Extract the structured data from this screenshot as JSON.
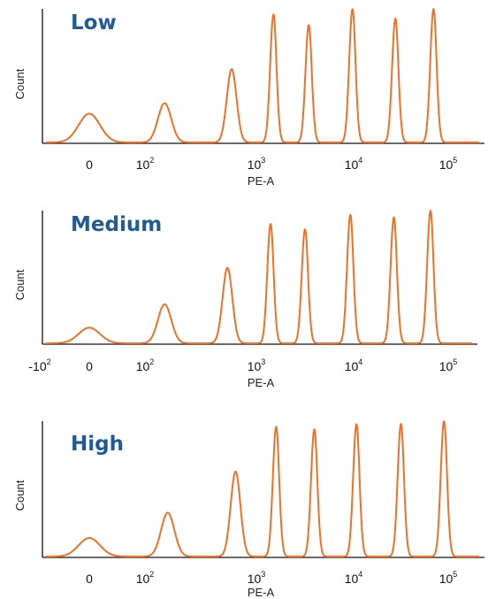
{
  "chart_data": [
    {
      "type": "line",
      "title": "Low",
      "xlabel": "PE-A",
      "ylabel": "Count",
      "x_ticks": [
        {
          "base": "",
          "exp": "",
          "text": "0"
        },
        {
          "base": "10",
          "exp": "2",
          "text": ""
        },
        {
          "base": "10",
          "exp": "3",
          "text": ""
        },
        {
          "base": "10",
          "exp": "4",
          "text": ""
        },
        {
          "base": "10",
          "exp": "5",
          "text": ""
        }
      ],
      "series": [
        {
          "values_note": "",
          "peaks": [
            {
              "x": 0,
              "height": 0.22
            },
            {
              "x": 150,
              "height": 0.3
            },
            {
              "x": 600,
              "height": 0.56
            },
            {
              "x": 1500,
              "height": 0.96
            },
            {
              "x": 3500,
              "height": 0.88
            },
            {
              "x": 10000,
              "height": 1.0
            },
            {
              "x": 28000,
              "height": 0.93
            },
            {
              "x": 70000,
              "height": 1.0
            }
          ]
        }
      ]
    },
    {
      "type": "line",
      "title": "Medium",
      "xlabel": "PE-A",
      "ylabel": "Count",
      "x_ticks": [
        {
          "base": "-10",
          "exp": "2",
          "text": ""
        },
        {
          "base": "",
          "exp": "",
          "text": "0"
        },
        {
          "base": "10",
          "exp": "2",
          "text": ""
        },
        {
          "base": "10",
          "exp": "3",
          "text": ""
        },
        {
          "base": "10",
          "exp": "4",
          "text": ""
        },
        {
          "base": "10",
          "exp": "5",
          "text": ""
        }
      ],
      "series": [
        {
          "values_note": "",
          "peaks": [
            {
              "x": 0,
              "height": 0.12
            },
            {
              "x": 150,
              "height": 0.3
            },
            {
              "x": 550,
              "height": 0.58
            },
            {
              "x": 1400,
              "height": 0.9
            },
            {
              "x": 3200,
              "height": 0.86
            },
            {
              "x": 9500,
              "height": 0.97
            },
            {
              "x": 27000,
              "height": 0.95
            },
            {
              "x": 65000,
              "height": 1.0
            }
          ]
        }
      ]
    },
    {
      "type": "line",
      "title": "High",
      "xlabel": "PE-A",
      "ylabel": "Count",
      "x_ticks": [
        {
          "base": "",
          "exp": "",
          "text": "0"
        },
        {
          "base": "10",
          "exp": "2",
          "text": ""
        },
        {
          "base": "10",
          "exp": "3",
          "text": ""
        },
        {
          "base": "10",
          "exp": "4",
          "text": ""
        },
        {
          "base": "10",
          "exp": "5",
          "text": ""
        }
      ],
      "series": [
        {
          "values_note": "",
          "peaks": [
            {
              "x": 0,
              "height": 0.14
            },
            {
              "x": 160,
              "height": 0.33
            },
            {
              "x": 650,
              "height": 0.64
            },
            {
              "x": 1600,
              "height": 0.96
            },
            {
              "x": 4000,
              "height": 0.94
            },
            {
              "x": 11000,
              "height": 0.98
            },
            {
              "x": 32000,
              "height": 0.98
            },
            {
              "x": 90000,
              "height": 1.0
            }
          ]
        }
      ]
    }
  ],
  "colors": {
    "curve": "#ee7127",
    "title": "#1f5b95",
    "axis": "#111111"
  }
}
